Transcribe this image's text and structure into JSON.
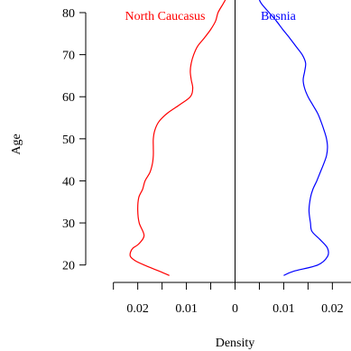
{
  "chart_data": {
    "type": "line",
    "subtype": "back-to-back density (population pyramid)",
    "xlabel": "Density",
    "ylabel": "Age",
    "yticks": [
      20,
      30,
      40,
      50,
      60,
      70,
      80
    ],
    "ylim": [
      18,
      83
    ],
    "xlim": [
      -0.0255,
      0.0255
    ],
    "xticks": [
      {
        "value": -0.02,
        "label": "0.02"
      },
      {
        "value": -0.01,
        "label": "0.01"
      },
      {
        "value": 0,
        "label": "0"
      },
      {
        "value": 0.01,
        "label": "0.01"
      },
      {
        "value": 0.02,
        "label": "0.02"
      }
    ],
    "minor_xticks": [
      -0.025,
      -0.015,
      -0.005,
      0.005,
      0.015,
      0.025
    ],
    "series": [
      {
        "name": "North Caucasus",
        "side": "left",
        "color": "#ff0000",
        "age": [
          17.5,
          18.5,
          20,
          21,
          22,
          23,
          24,
          25,
          27,
          30,
          33,
          36,
          38,
          40,
          42,
          44,
          46,
          48,
          50,
          52,
          54,
          56,
          58,
          60,
          62,
          64,
          66,
          68,
          70,
          72,
          74,
          76,
          78,
          80,
          82,
          83
        ],
        "density": [
          0.0135,
          0.0155,
          0.0187,
          0.0205,
          0.0215,
          0.0215,
          0.021,
          0.0198,
          0.0187,
          0.0197,
          0.02,
          0.0198,
          0.019,
          0.0185,
          0.0175,
          0.017,
          0.0168,
          0.0168,
          0.0168,
          0.0165,
          0.0157,
          0.014,
          0.0115,
          0.0092,
          0.0087,
          0.009,
          0.0092,
          0.009,
          0.0085,
          0.0077,
          0.0063,
          0.005,
          0.004,
          0.0035,
          0.0025,
          0.002
        ]
      },
      {
        "name": "Bosnia",
        "side": "right",
        "color": "#0000ff",
        "age": [
          17.5,
          18.5,
          20,
          22,
          24,
          26,
          28,
          30,
          33,
          36,
          38,
          40,
          42,
          44,
          46,
          48,
          50,
          52,
          54,
          56,
          58,
          60,
          62,
          64,
          66,
          68,
          70,
          72,
          74,
          76,
          78,
          80,
          82,
          83
        ],
        "density": [
          0.01,
          0.012,
          0.017,
          0.019,
          0.019,
          0.0175,
          0.0158,
          0.0155,
          0.0152,
          0.0155,
          0.016,
          0.0168,
          0.0175,
          0.0182,
          0.0188,
          0.019,
          0.0188,
          0.0183,
          0.0177,
          0.017,
          0.016,
          0.015,
          0.0143,
          0.014,
          0.0143,
          0.0145,
          0.0138,
          0.0125,
          0.0112,
          0.0098,
          0.0085,
          0.007,
          0.0055,
          0.005
        ]
      }
    ]
  }
}
